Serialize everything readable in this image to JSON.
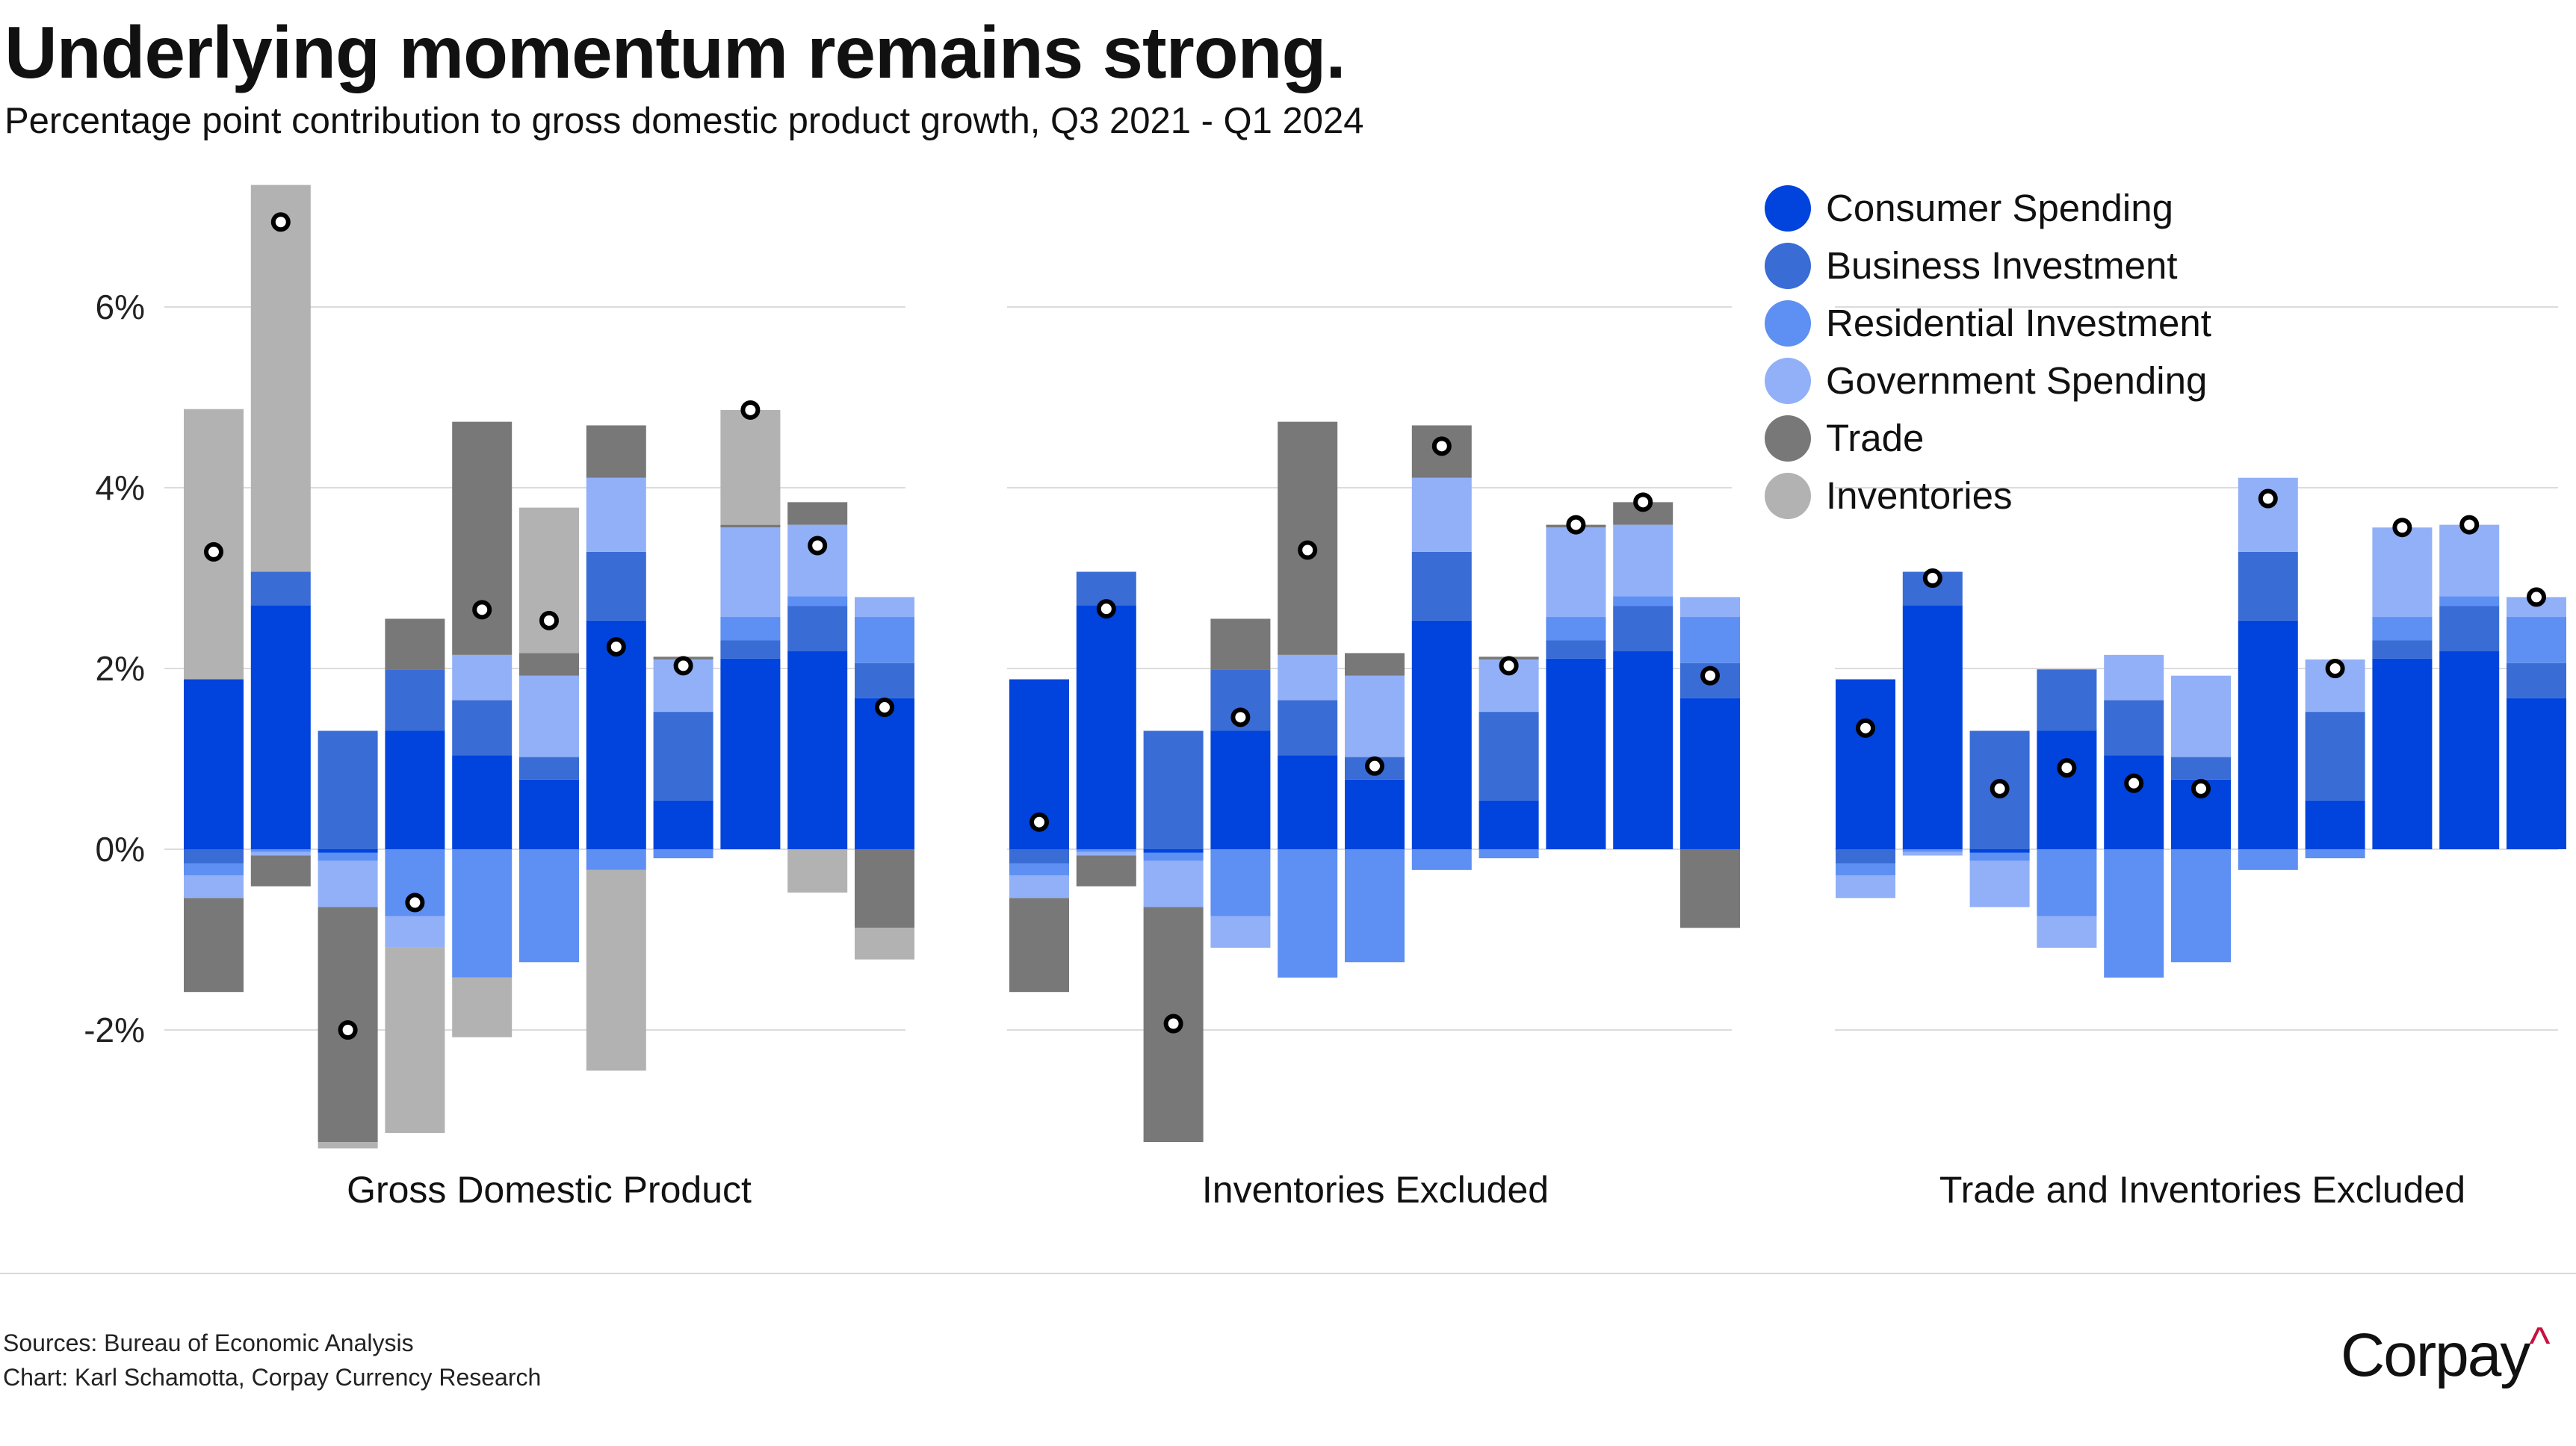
{
  "header": {
    "title": "Underlying momentum remains strong.",
    "subtitle": "Percentage point contribution to gross domestic product growth, Q3 2021 - Q1 2024"
  },
  "footer": {
    "sources": "Sources: Bureau of Economic Analysis",
    "credit": "Chart: Karl Schamotta, Corpay Currency Research",
    "logo_text": "Corpay",
    "logo_mark": "^"
  },
  "chart_data": {
    "type": "bar",
    "stacked": true,
    "title": "Underlying momentum remains strong.",
    "ylabel": "",
    "ylim": [
      -3.3,
      7.4
    ],
    "y_ticks": [
      "6%",
      "4%",
      "2%",
      "0%",
      "-2%"
    ],
    "y_tick_values": [
      6,
      4,
      2,
      0,
      -2
    ],
    "grid": true,
    "legend_position": "top-right",
    "total_marker": "dot",
    "series": [
      {
        "name": "Consumer Spending",
        "color": "#0044dd",
        "values": [
          1.88,
          2.7,
          -0.04,
          1.31,
          1.04,
          0.77,
          2.53,
          0.54,
          2.11,
          2.19,
          1.67
        ]
      },
      {
        "name": "Business Investment",
        "color": "#3a6cd6",
        "values": [
          -0.16,
          0.37,
          1.31,
          0.68,
          0.61,
          0.25,
          0.76,
          0.98,
          0.2,
          0.5,
          0.39
        ]
      },
      {
        "name": "Residential Investment",
        "color": "#5e8ff3",
        "values": [
          -0.13,
          -0.03,
          -0.09,
          -0.74,
          -1.42,
          -1.25,
          -0.23,
          -0.1,
          0.26,
          0.11,
          0.51
        ]
      },
      {
        "name": "Government Spending",
        "color": "#92b0f7",
        "values": [
          -0.25,
          -0.04,
          -0.51,
          -0.35,
          0.5,
          0.9,
          0.82,
          0.58,
          0.99,
          0.79,
          0.22
        ]
      },
      {
        "name": "Trade",
        "color": "#787878",
        "values": [
          -1.04,
          -0.34,
          -2.6,
          0.56,
          2.58,
          0.25,
          0.58,
          0.03,
          0.03,
          0.25,
          -0.87
        ]
      },
      {
        "name": "Inventories",
        "color": "#b2b2b2",
        "values": [
          2.99,
          4.28,
          -0.07,
          -2.05,
          -0.66,
          1.61,
          -2.22,
          0.0,
          1.27,
          -0.48,
          -0.35
        ]
      }
    ],
    "panels": [
      {
        "title": "Gross Domestic Product",
        "included": [
          0,
          1,
          2,
          3,
          4,
          5
        ]
      },
      {
        "title": "Inventories Excluded",
        "included": [
          0,
          1,
          2,
          3,
          4
        ]
      },
      {
        "title": "Trade and Inventories Excluded",
        "included": [
          0,
          1,
          2,
          3
        ]
      }
    ]
  }
}
